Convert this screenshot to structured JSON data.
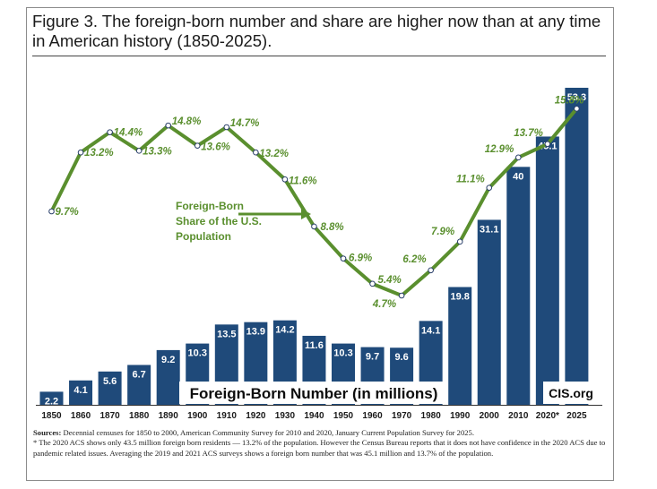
{
  "title": "Figure 3. The foreign-born number and share are higher now than at any time in American history (1850-2025).",
  "chart_data": {
    "type": "bar",
    "categories": [
      "1850",
      "1860",
      "1870",
      "1880",
      "1890",
      "1900",
      "1910",
      "1920",
      "1930",
      "1940",
      "1950",
      "1960",
      "1970",
      "1980",
      "1990",
      "2000",
      "2010",
      "2020*",
      "2025"
    ],
    "series": [
      {
        "name": "Foreign-Born Number (in millions)",
        "type": "bar",
        "values": [
          2.2,
          4.1,
          5.6,
          6.7,
          9.2,
          10.3,
          13.5,
          13.9,
          14.2,
          11.6,
          10.3,
          9.7,
          9.6,
          14.1,
          19.8,
          31.1,
          40,
          45.1,
          53.3
        ],
        "labels": [
          "2.2",
          "4.1",
          "5.6",
          "6.7",
          "9.2",
          "10.3",
          "13.5",
          "13.9",
          "14.2",
          "11.6",
          "10.3",
          "9.7",
          "9.6",
          "14.1",
          "19.8",
          "31.1",
          "40",
          "45.1",
          "53.3"
        ]
      },
      {
        "name": "Foreign-Born Share of the U.S. Population",
        "type": "line",
        "values": [
          9.7,
          13.2,
          14.4,
          13.3,
          14.8,
          13.6,
          14.7,
          13.2,
          11.6,
          8.8,
          6.9,
          5.4,
          4.7,
          6.2,
          7.9,
          11.1,
          12.9,
          13.7,
          15.8
        ],
        "labels": [
          "9.7%",
          "13.2%",
          "14.4%",
          "13.3%",
          "14.8%",
          "13.6%",
          "14.7%",
          "13.2%",
          "11.6%",
          "8.8%",
          "6.9%",
          "5.4%",
          "4.7%",
          "6.2%",
          "7.9%",
          "11.1%",
          "12.9%",
          "13.7%",
          "15.8%"
        ]
      }
    ],
    "bar_annotation": "Foreign-Born Number (in millions)",
    "line_annotation": [
      "Foreign-Born",
      "Share of the U.S.",
      "Population"
    ],
    "logo": "CIS.org",
    "grid": false,
    "colors": {
      "bar": "#1f4a7a",
      "line": "#5a8f2e",
      "line_label": "#5a8f2e",
      "marker_fill": "#ffffff",
      "marker_stroke": "#2a3f6a"
    }
  },
  "sources": {
    "label": "Sources:",
    "text": " Decennial censuses for 1850 to 2000, American Community Survey for 2010 and 2020, January Current Population Survey for 2025.",
    "footnote": "* The 2020 ACS shows only 43.5 million foreign born residents — 13.2% of the population. However the Census Bureau reports that it does not have confidence in the 2020 ACS due to pandemic related issues. Averaging the 2019 and 2021 ACS surveys shows a foreign born number that was 45.1 million and 13.7% of the population."
  }
}
